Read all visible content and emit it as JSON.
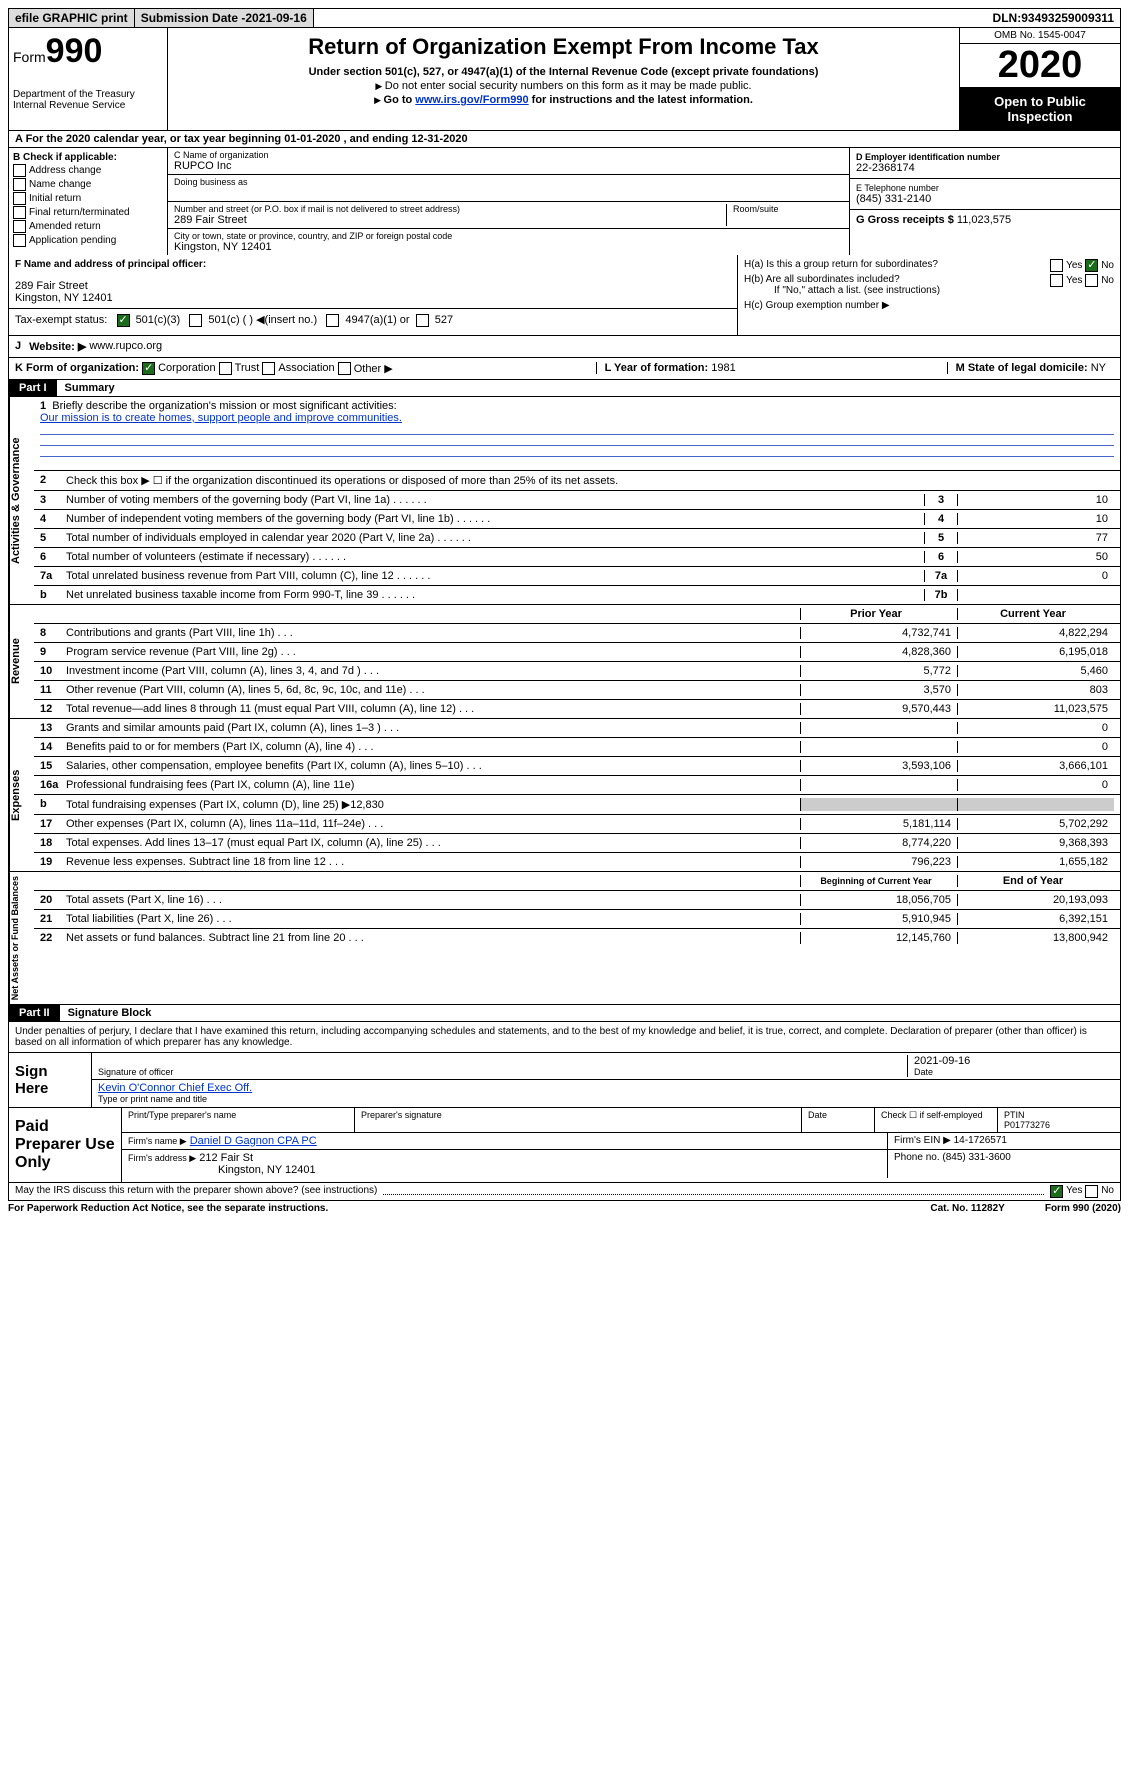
{
  "topbar": {
    "efile": "efile GRAPHIC print",
    "subdate_label": "Submission Date - ",
    "subdate": "2021-09-16",
    "dln_label": "DLN: ",
    "dln": "93493259009311"
  },
  "header": {
    "form_prefix": "Form",
    "form_num": "990",
    "dept": "Department of the Treasury\nInternal Revenue Service",
    "title": "Return of Organization Exempt From Income Tax",
    "sub": "Under section 501(c), 527, or 4947(a)(1) of the Internal Revenue Code (except private foundations)",
    "note1": "Do not enter social security numbers on this form as it may be made public.",
    "note2a": "Go to ",
    "note2link": "www.irs.gov/Form990",
    "note2b": " for instructions and the latest information.",
    "omb": "OMB No. 1545-0047",
    "year": "2020",
    "open": "Open to Public Inspection"
  },
  "rowA": "A For the 2020 calendar year, or tax year beginning 01-01-2020   , and ending 12-31-2020",
  "B": {
    "label": "B Check if applicable:",
    "opts": [
      "Address change",
      "Name change",
      "Initial return",
      "Final return/terminated",
      "Amended return",
      "Application pending"
    ]
  },
  "C": {
    "name_label": "C Name of organization",
    "name": "RUPCO Inc",
    "dba_label": "Doing business as",
    "street_label": "Number and street (or P.O. box if mail is not delivered to street address)",
    "room_label": "Room/suite",
    "street": "289 Fair Street",
    "city_label": "City or town, state or province, country, and ZIP or foreign postal code",
    "city": "Kingston, NY  12401"
  },
  "D": {
    "label": "D Employer identification number",
    "val": "22-2368174"
  },
  "E": {
    "label": "E Telephone number",
    "val": "(845) 331-2140"
  },
  "G": {
    "label": "G Gross receipts $ ",
    "val": "11,023,575"
  },
  "F": {
    "label": "F  Name and address of principal officer:",
    "addr1": "289 Fair Street",
    "addr2": "Kingston, NY  12401",
    "taxexempt": "Tax-exempt status:",
    "c3": "501(c)(3)",
    "c_other": "501(c) (  ) ◀(insert no.)",
    "c4947": "4947(a)(1) or",
    "c527": "527"
  },
  "H": {
    "a": "H(a)  Is this a group return for subordinates?",
    "b": "H(b)  Are all subordinates included?",
    "bnote": "If \"No,\" attach a list. (see instructions)",
    "c": "H(c)  Group exemption number ▶",
    "yes": "Yes",
    "no": "No"
  },
  "J": {
    "label": "J",
    "text": "Website: ▶",
    "val": "www.rupco.org"
  },
  "K": {
    "label": "K Form of organization:",
    "corp": "Corporation",
    "trust": "Trust",
    "assoc": "Association",
    "other": "Other ▶",
    "L": "L Year of formation: ",
    "Lval": "1981",
    "M": "M State of legal domicile: ",
    "Mval": "NY"
  },
  "part1": {
    "title": "Part I",
    "subtitle": "Summary",
    "tabs": [
      "Activities & Governance",
      "Revenue",
      "Expenses",
      "Net Assets or Fund Balances"
    ],
    "line1": "Briefly describe the organization's mission or most significant activities:",
    "mission": "Our mission is to create homes, support people and improve communities.",
    "line2": "Check this box ▶ ☐  if the organization discontinued its operations or disposed of more than 25% of its net assets.",
    "rows_single": [
      {
        "n": "3",
        "t": "Number of voting members of the governing body (Part VI, line 1a)",
        "ln": "3",
        "v": "10"
      },
      {
        "n": "4",
        "t": "Number of independent voting members of the governing body (Part VI, line 1b)",
        "ln": "4",
        "v": "10"
      },
      {
        "n": "5",
        "t": "Total number of individuals employed in calendar year 2020 (Part V, line 2a)",
        "ln": "5",
        "v": "77"
      },
      {
        "n": "6",
        "t": "Total number of volunteers (estimate if necessary)",
        "ln": "6",
        "v": "50"
      },
      {
        "n": "7a",
        "t": "Total unrelated business revenue from Part VIII, column (C), line 12",
        "ln": "7a",
        "v": "0"
      },
      {
        "n": "b",
        "t": "Net unrelated business taxable income from Form 990-T, line 39",
        "ln": "7b",
        "v": ""
      }
    ],
    "hdr_prior": "Prior Year",
    "hdr_curr": "Current Year",
    "rows_rev": [
      {
        "n": "8",
        "t": "Contributions and grants (Part VIII, line 1h)",
        "p": "4,732,741",
        "c": "4,822,294"
      },
      {
        "n": "9",
        "t": "Program service revenue (Part VIII, line 2g)",
        "p": "4,828,360",
        "c": "6,195,018"
      },
      {
        "n": "10",
        "t": "Investment income (Part VIII, column (A), lines 3, 4, and 7d )",
        "p": "5,772",
        "c": "5,460"
      },
      {
        "n": "11",
        "t": "Other revenue (Part VIII, column (A), lines 5, 6d, 8c, 9c, 10c, and 11e)",
        "p": "3,570",
        "c": "803"
      },
      {
        "n": "12",
        "t": "Total revenue—add lines 8 through 11 (must equal Part VIII, column (A), line 12)",
        "p": "9,570,443",
        "c": "11,023,575"
      }
    ],
    "rows_exp": [
      {
        "n": "13",
        "t": "Grants and similar amounts paid (Part IX, column (A), lines 1–3 )",
        "p": "",
        "c": "0"
      },
      {
        "n": "14",
        "t": "Benefits paid to or for members (Part IX, column (A), line 4)",
        "p": "",
        "c": "0"
      },
      {
        "n": "15",
        "t": "Salaries, other compensation, employee benefits (Part IX, column (A), lines 5–10)",
        "p": "3,593,106",
        "c": "3,666,101"
      },
      {
        "n": "16a",
        "t": "Professional fundraising fees (Part IX, column (A), line 11e)",
        "p": "",
        "c": "0"
      },
      {
        "n": "b",
        "t": "Total fundraising expenses (Part IX, column (D), line 25) ▶12,830",
        "p": "GREY",
        "c": "GREY"
      },
      {
        "n": "17",
        "t": "Other expenses (Part IX, column (A), lines 11a–11d, 11f–24e)",
        "p": "5,181,114",
        "c": "5,702,292"
      },
      {
        "n": "18",
        "t": "Total expenses. Add lines 13–17 (must equal Part IX, column (A), line 25)",
        "p": "8,774,220",
        "c": "9,368,393"
      },
      {
        "n": "19",
        "t": "Revenue less expenses. Subtract line 18 from line 12",
        "p": "796,223",
        "c": "1,655,182"
      }
    ],
    "hdr_beg": "Beginning of Current Year",
    "hdr_end": "End of Year",
    "rows_net": [
      {
        "n": "20",
        "t": "Total assets (Part X, line 16)",
        "p": "18,056,705",
        "c": "20,193,093"
      },
      {
        "n": "21",
        "t": "Total liabilities (Part X, line 26)",
        "p": "5,910,945",
        "c": "6,392,151"
      },
      {
        "n": "22",
        "t": "Net assets or fund balances. Subtract line 21 from line 20",
        "p": "12,145,760",
        "c": "13,800,942"
      }
    ]
  },
  "part2": {
    "title": "Part II",
    "subtitle": "Signature Block",
    "perjury": "Under penalties of perjury, I declare that I have examined this return, including accompanying schedules and statements, and to the best of my knowledge and belief, it is true, correct, and complete. Declaration of preparer (other than officer) is based on all information of which preparer has any knowledge.",
    "sign_here": "Sign Here",
    "sig_officer": "Signature of officer",
    "sig_date": "2021-09-16",
    "date_label": "Date",
    "officer_name": "Kevin O'Connor  Chief Exec Off.",
    "type_name": "Type or print name and title",
    "paid": "Paid Preparer Use Only",
    "prep_name_label": "Print/Type preparer's name",
    "prep_sig_label": "Preparer's signature",
    "prep_date_label": "Date",
    "self_emp": "Check ☐ if self-employed",
    "ptin_label": "PTIN",
    "ptin": "P01773276",
    "firm_name_label": "Firm's name   ▶",
    "firm_name": "Daniel D Gagnon CPA PC",
    "firm_ein_label": "Firm's EIN ▶",
    "firm_ein": "14-1726571",
    "firm_addr_label": "Firm's address ▶",
    "firm_addr1": "212 Fair St",
    "firm_addr2": "Kingston, NY  12401",
    "firm_phone_label": "Phone no. ",
    "firm_phone": "(845) 331-3600",
    "discuss": "May the IRS discuss this return with the preparer shown above? (see instructions)",
    "yes": "Yes",
    "no": "No"
  },
  "footer": {
    "pra": "For Paperwork Reduction Act Notice, see the separate instructions.",
    "cat": "Cat. No. 11282Y",
    "form": "Form 990 (2020)"
  }
}
